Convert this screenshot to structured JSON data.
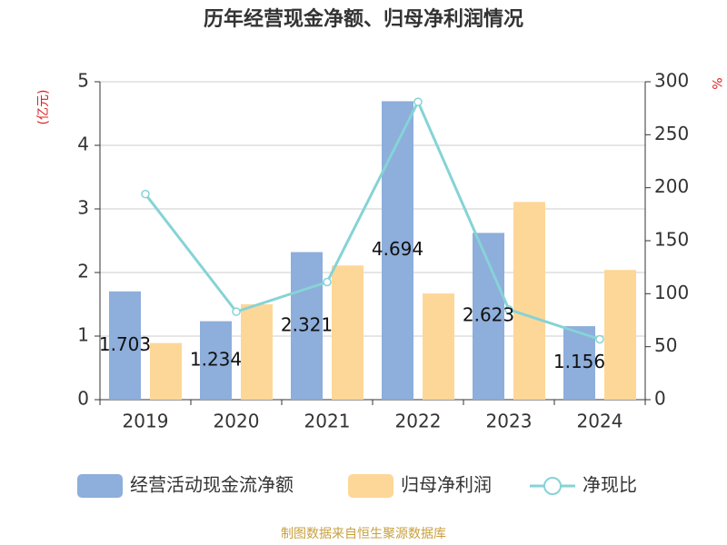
{
  "chart_data": {
    "type": "bar-line",
    "title": "历年经营现金净额、归母净利润情况",
    "y_label": "(亿元)",
    "y2_label": "%",
    "categories": [
      "2019",
      "2020",
      "2021",
      "2022",
      "2023",
      "2024"
    ],
    "series": [
      {
        "name": "经营活动现金流净额",
        "type": "bar",
        "color": "#8eaedb",
        "values": [
          1.703,
          1.234,
          2.321,
          4.694,
          2.623,
          1.156
        ],
        "show_labels": true
      },
      {
        "name": "归母净利润",
        "type": "bar",
        "color": "#fdd797",
        "values": [
          0.89,
          1.5,
          2.11,
          1.67,
          3.11,
          2.04
        ]
      },
      {
        "name": "净现比",
        "type": "line",
        "axis": "y2",
        "color": "#86d3d6",
        "values": [
          194,
          83,
          111,
          281,
          85,
          57
        ]
      }
    ],
    "ylim": [
      0,
      5
    ],
    "yticks": [
      0,
      1,
      2,
      3,
      4,
      5
    ],
    "y2lim": [
      0,
      300
    ],
    "y2ticks": [
      0,
      50,
      100,
      150,
      200,
      250,
      300
    ],
    "grid": true,
    "legend": "bottom",
    "source": "制图数据来自恒生聚源数据库"
  }
}
